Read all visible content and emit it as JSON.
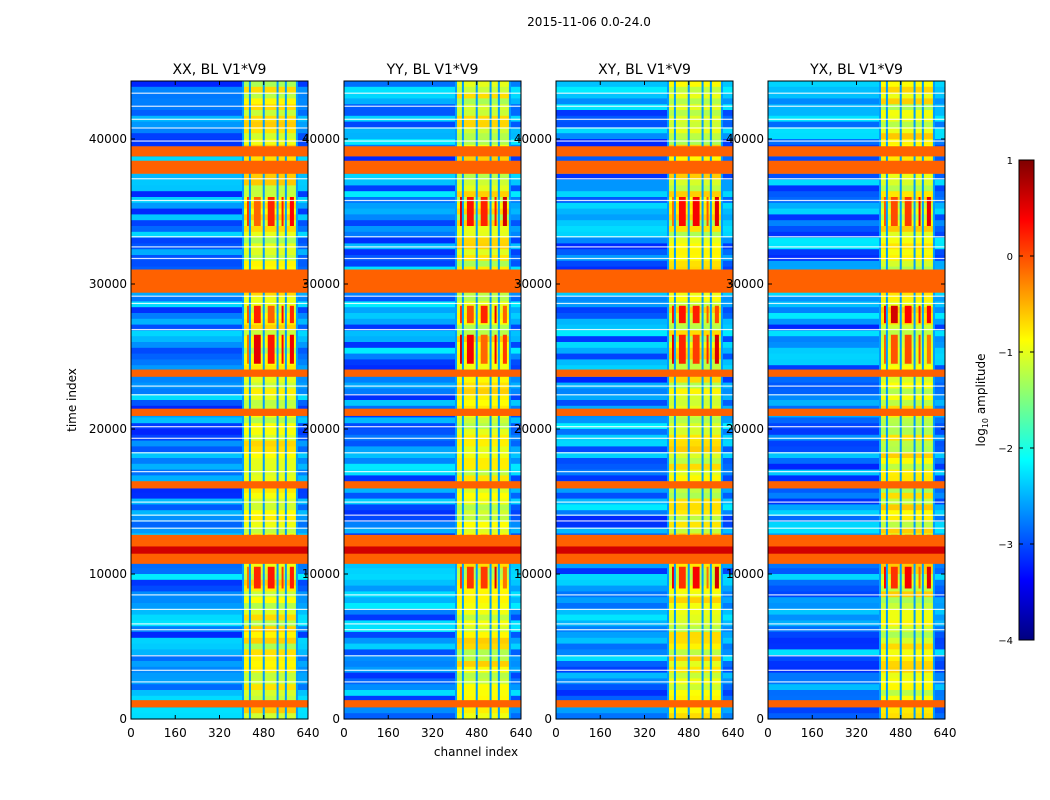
{
  "chart_data": {
    "type": "heatmap",
    "suptitle": "2015-11-06 0.0-24.0",
    "xlabel": "channel index",
    "ylabel": "time index",
    "xlim": [
      0,
      640
    ],
    "ylim": [
      0,
      44000
    ],
    "xticks": [
      0,
      160,
      320,
      480,
      640
    ],
    "yticks": [
      0,
      10000,
      20000,
      30000,
      40000
    ],
    "panels": [
      {
        "title": "XX, BL V1*V9"
      },
      {
        "title": "YY, BL V1*V9"
      },
      {
        "title": "XY, BL V1*V9"
      },
      {
        "title": "YX, BL V1*V9"
      }
    ],
    "colorbar": {
      "label": "log10 amplitude",
      "label_base": "log",
      "label_sub": "10",
      "label_rest": " amplitude",
      "range": [
        -4,
        1
      ],
      "ticks": [
        1,
        0,
        -1,
        -2,
        -3,
        -4
      ],
      "tick_labels": [
        "1",
        "0",
        "−1",
        "−2",
        "−3",
        "−4"
      ],
      "colormap": "jet",
      "cmap_colors": [
        "#00007f",
        "#0000ff",
        "#007fff",
        "#00ffff",
        "#7fff7f",
        "#ffff00",
        "#ff7f00",
        "#ff0000",
        "#7f0000"
      ]
    },
    "bright_channel_band": [
      405,
      600
    ],
    "bright_channel_edges": [
      405,
      430,
      480,
      530,
      560,
      600
    ],
    "bright_time_bands": [
      [
        800,
        1300
      ],
      [
        10700,
        12700
      ],
      [
        15900,
        16400
      ],
      [
        20900,
        21400
      ],
      [
        23600,
        24100
      ],
      [
        29400,
        31000
      ],
      [
        37600,
        38500
      ],
      [
        38800,
        39500
      ]
    ],
    "hot_regions": [
      [
        9000,
        10500
      ],
      [
        11500,
        12700
      ],
      [
        24500,
        26500
      ],
      [
        27300,
        28500
      ],
      [
        34000,
        36000
      ]
    ],
    "horizontal_streak_times": [
      2600,
      3400,
      4400,
      6200,
      6600,
      7600,
      8600,
      13200,
      13700,
      14100,
      15000,
      17100,
      18400,
      19400,
      20200,
      22400,
      23000,
      26900,
      28700,
      29200,
      31800,
      32600,
      33300,
      35800,
      37300,
      39900,
      40800,
      41400,
      42300,
      43200
    ]
  }
}
